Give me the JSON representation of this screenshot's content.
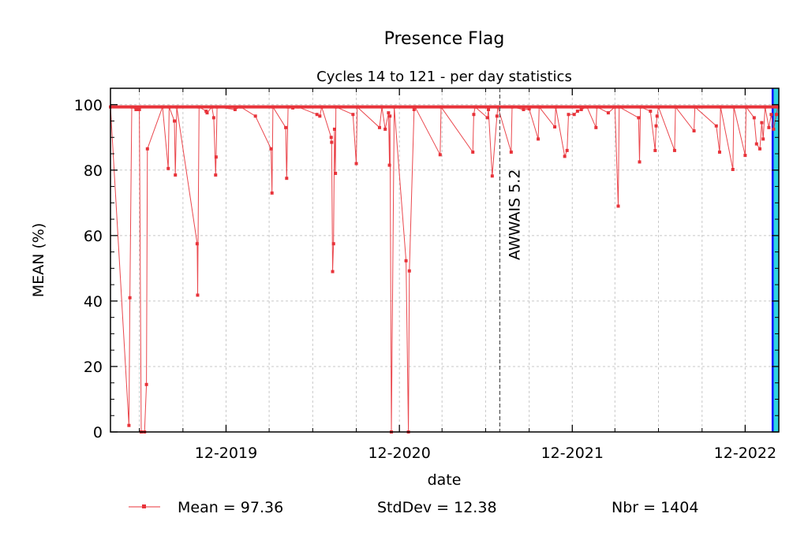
{
  "chart_data": {
    "type": "line",
    "title": "Presence Flag",
    "subtitle": "Cycles 14 to 121 - per day statistics",
    "xlabel": "date",
    "ylabel": "MEAN (%)",
    "xlim": [
      "2019-04-01",
      "2023-02-10"
    ],
    "ylim": [
      0,
      105
    ],
    "x_ticks": [
      {
        "date": "2019-12-01",
        "label": "12-2019"
      },
      {
        "date": "2020-12-01",
        "label": "12-2020"
      },
      {
        "date": "2021-12-01",
        "label": "12-2021"
      },
      {
        "date": "2022-12-01",
        "label": "12-2022"
      }
    ],
    "y_ticks": [
      0,
      20,
      40,
      60,
      80,
      100
    ],
    "grid": true,
    "baseline": 99.3,
    "series": [
      {
        "name": "Mean",
        "color": "#e8333a",
        "points": [
          [
            "2019-04-01",
            99.3
          ],
          [
            "2019-05-10",
            2
          ],
          [
            "2019-05-12",
            41
          ],
          [
            "2019-05-16",
            99.3
          ],
          [
            "2019-05-25",
            98.5
          ],
          [
            "2019-05-28",
            98.5
          ],
          [
            "2019-06-01",
            98.5
          ],
          [
            "2019-06-05",
            0
          ],
          [
            "2019-06-12",
            0
          ],
          [
            "2019-06-16",
            14.5
          ],
          [
            "2019-06-18",
            86.5
          ],
          [
            "2019-07-20",
            99.3
          ],
          [
            "2019-08-01",
            80.5
          ],
          [
            "2019-08-03",
            99.3
          ],
          [
            "2019-08-14",
            95
          ],
          [
            "2019-08-16",
            78.5
          ],
          [
            "2019-08-19",
            99.3
          ],
          [
            "2019-10-01",
            57.5
          ],
          [
            "2019-10-02",
            41.8
          ],
          [
            "2019-10-05",
            99.3
          ],
          [
            "2019-10-20",
            98
          ],
          [
            "2019-10-22",
            97.5
          ],
          [
            "2019-11-01",
            99.3
          ],
          [
            "2019-11-05",
            96
          ],
          [
            "2019-11-09",
            78.5
          ],
          [
            "2019-11-10",
            84
          ],
          [
            "2019-11-12",
            99.3
          ],
          [
            "2019-12-20",
            98.5
          ],
          [
            "2020-01-01",
            99.3
          ],
          [
            "2020-02-01",
            96.5
          ],
          [
            "2020-03-05",
            86.5
          ],
          [
            "2020-03-07",
            73
          ],
          [
            "2020-03-09",
            99.3
          ],
          [
            "2020-04-05",
            93
          ],
          [
            "2020-04-07",
            77.5
          ],
          [
            "2020-04-10",
            99.3
          ],
          [
            "2020-04-20",
            99
          ],
          [
            "2020-05-01",
            99.3
          ],
          [
            "2020-06-10",
            97
          ],
          [
            "2020-06-16",
            96.5
          ],
          [
            "2020-06-20",
            99.3
          ],
          [
            "2020-07-10",
            90
          ],
          [
            "2020-07-11",
            88.5
          ],
          [
            "2020-07-13",
            49
          ],
          [
            "2020-07-15",
            57.5
          ],
          [
            "2020-07-17",
            92.5
          ],
          [
            "2020-07-19",
            79
          ],
          [
            "2020-07-20",
            99.3
          ],
          [
            "2020-08-25",
            97
          ],
          [
            "2020-09-01",
            82
          ],
          [
            "2020-09-03",
            99.3
          ],
          [
            "2020-10-20",
            93
          ],
          [
            "2020-10-25",
            99.3
          ],
          [
            "2020-11-01",
            92.5
          ],
          [
            "2020-11-08",
            97.5
          ],
          [
            "2020-11-10",
            81.5
          ],
          [
            "2020-11-11",
            96.5
          ],
          [
            "2020-11-14",
            0
          ],
          [
            "2020-11-20",
            99.3
          ],
          [
            "2020-12-15",
            52.3
          ],
          [
            "2020-12-20",
            0
          ],
          [
            "2020-12-22",
            49.2
          ],
          [
            "2021-01-01",
            98.5
          ],
          [
            "2021-01-03",
            99.3
          ],
          [
            "2021-02-25",
            84.7
          ],
          [
            "2021-02-27",
            99.3
          ],
          [
            "2021-05-05",
            85.5
          ],
          [
            "2021-05-07",
            97
          ],
          [
            "2021-05-10",
            99.3
          ],
          [
            "2021-06-05",
            96
          ],
          [
            "2021-06-07",
            98.5
          ],
          [
            "2021-06-15",
            78.2
          ],
          [
            "2021-06-25",
            96.5
          ],
          [
            "2021-06-27",
            99.3
          ],
          [
            "2021-07-25",
            85.5
          ],
          [
            "2021-07-27",
            99.3
          ],
          [
            "2021-08-20",
            98.5
          ],
          [
            "2021-09-01",
            98.7
          ],
          [
            "2021-09-20",
            89.5
          ],
          [
            "2021-09-22",
            99.3
          ],
          [
            "2021-10-25",
            93.2
          ],
          [
            "2021-10-27",
            99.3
          ],
          [
            "2021-11-15",
            84.2
          ],
          [
            "2021-11-20",
            86
          ],
          [
            "2021-11-23",
            97
          ],
          [
            "2021-12-05",
            97
          ],
          [
            "2021-12-12",
            98
          ],
          [
            "2021-12-20",
            98.5
          ],
          [
            "2022-01-01",
            99.3
          ],
          [
            "2022-01-20",
            93
          ],
          [
            "2022-01-22",
            99.3
          ],
          [
            "2022-02-15",
            97.5
          ],
          [
            "2022-03-01",
            99.3
          ],
          [
            "2022-03-08",
            69
          ],
          [
            "2022-03-10",
            99.3
          ],
          [
            "2022-04-20",
            96
          ],
          [
            "2022-04-22",
            82.5
          ],
          [
            "2022-04-24",
            99.3
          ],
          [
            "2022-05-15",
            98
          ],
          [
            "2022-05-25",
            86
          ],
          [
            "2022-05-27",
            93.5
          ],
          [
            "2022-05-29",
            96.5
          ],
          [
            "2022-06-01",
            99.3
          ],
          [
            "2022-07-05",
            86
          ],
          [
            "2022-07-07",
            99.3
          ],
          [
            "2022-08-15",
            92
          ],
          [
            "2022-08-17",
            99.3
          ],
          [
            "2022-10-01",
            93.5
          ],
          [
            "2022-10-08",
            85.5
          ],
          [
            "2022-10-10",
            99.3
          ],
          [
            "2022-11-05",
            80.2
          ],
          [
            "2022-11-07",
            99.3
          ],
          [
            "2022-12-01",
            84.5
          ],
          [
            "2022-12-03",
            99.3
          ],
          [
            "2022-12-20",
            96
          ],
          [
            "2022-12-25",
            88
          ],
          [
            "2023-01-01",
            86.5
          ],
          [
            "2023-01-05",
            94.5
          ],
          [
            "2023-01-08",
            89.5
          ],
          [
            "2023-01-12",
            99.3
          ],
          [
            "2023-01-20",
            93
          ],
          [
            "2023-01-25",
            97
          ],
          [
            "2023-01-30",
            92.5
          ],
          [
            "2023-02-05",
            97
          ],
          [
            "2023-02-08",
            99.3
          ]
        ]
      }
    ],
    "annotations": [
      {
        "date": "2021-07-01",
        "text": "AWWAIS 5.2",
        "style": "dashed-vertical-line"
      }
    ],
    "highlight_region": {
      "start": "2023-01-28",
      "end": "2023-02-10",
      "fill": "#2ed3e0",
      "edge": "#0000ff"
    },
    "legend": {
      "placement": "bottom",
      "mean_text": "Mean = 97.36",
      "stddev_text": "StdDev = 12.38",
      "nbr_text": "Nbr = 1404"
    }
  }
}
